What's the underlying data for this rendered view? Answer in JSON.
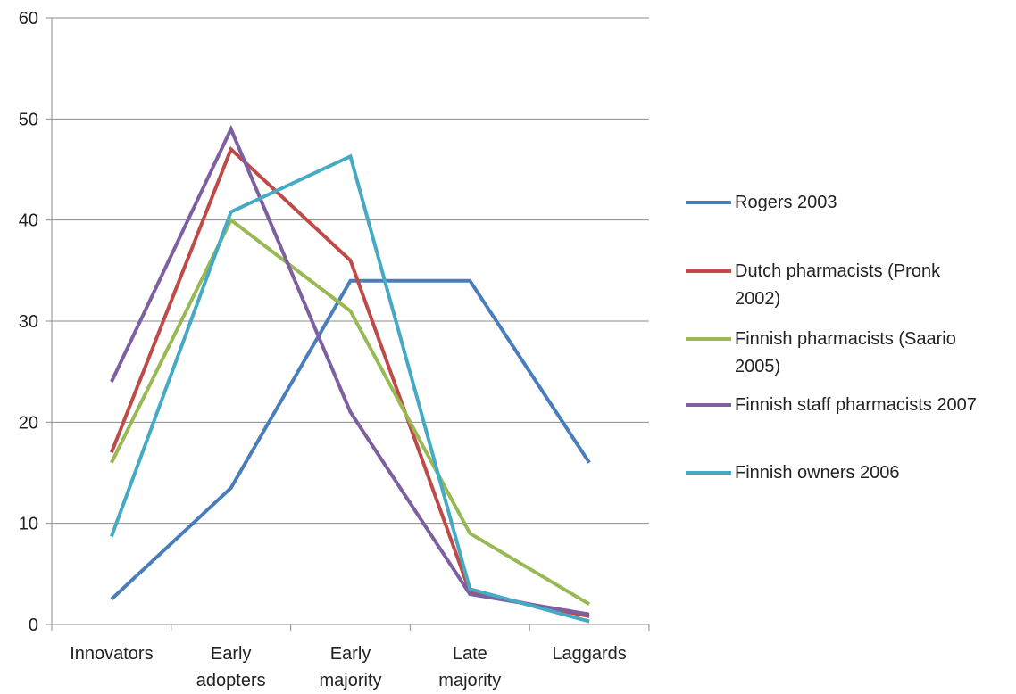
{
  "chart_data": {
    "type": "line",
    "title": "",
    "xlabel": "",
    "ylabel": "",
    "ylim": [
      0,
      60
    ],
    "yticks": [
      0,
      10,
      20,
      30,
      40,
      50,
      60
    ],
    "grid": true,
    "legend_position": "right",
    "categories": [
      [
        "Innovators"
      ],
      [
        "Early",
        "adopters"
      ],
      [
        "Early",
        "majority"
      ],
      [
        "Late",
        "majority"
      ],
      [
        "Laggards"
      ]
    ],
    "series": [
      {
        "name": [
          "Rogers 2003"
        ],
        "color": "#4a7ebb",
        "values": [
          2.5,
          13.5,
          34,
          34,
          16
        ]
      },
      {
        "name": [
          "Dutch pharmacists (Pronk",
          "2002)"
        ],
        "color": "#be4b48",
        "values": [
          17,
          47,
          36,
          3.2,
          0.8
        ]
      },
      {
        "name": [
          "Finnish pharmacists (Saario",
          "2005)"
        ],
        "color": "#98b954",
        "values": [
          16,
          40,
          31,
          9,
          2
        ]
      },
      {
        "name": [
          "Finnish staff pharmacists 2007"
        ],
        "color": "#7d60a0",
        "values": [
          24,
          49,
          21,
          3,
          1
        ]
      },
      {
        "name": [
          "Finnish owners 2006"
        ],
        "color": "#46aac5",
        "values": [
          8.7,
          40.8,
          46.3,
          3.5,
          0.3
        ]
      }
    ]
  }
}
